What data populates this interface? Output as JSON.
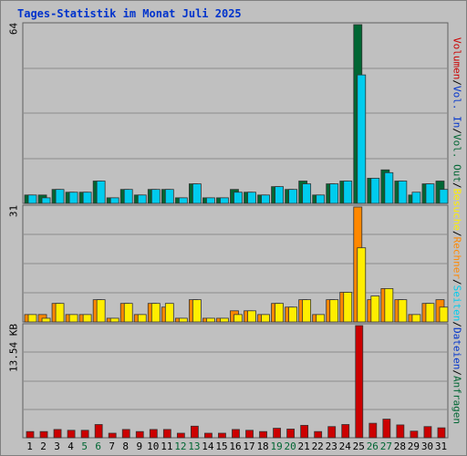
{
  "title": "Tages-Statistik im Monat Juli 2025",
  "panels": {
    "top_max_label": "64",
    "mid_max_label": "31",
    "bottom_max_label": "13.54 KB"
  },
  "legend": {
    "items": [
      {
        "label": "Volumen",
        "color": "#cc0000"
      },
      {
        "label": "Vol. In",
        "color": "#0033cc"
      },
      {
        "label": "Vol. Out",
        "color": "#006633"
      },
      {
        "label": "Besuche",
        "color": "#ffee00"
      },
      {
        "label": "Rechner",
        "color": "#ff8800"
      },
      {
        "label": "Seiten",
        "color": "#00ccee"
      },
      {
        "label": "Dateien",
        "color": "#0033cc"
      },
      {
        "label": "Anfragen",
        "color": "#006633"
      }
    ],
    "separator": "/"
  },
  "chart_data": {
    "type": "bar",
    "categories": [
      "1",
      "2",
      "3",
      "4",
      "5",
      "6",
      "7",
      "8",
      "9",
      "10",
      "11",
      "12",
      "13",
      "14",
      "15",
      "16",
      "17",
      "18",
      "19",
      "20",
      "21",
      "22",
      "23",
      "24",
      "25",
      "26",
      "27",
      "28",
      "29",
      "30",
      "31"
    ],
    "weekend_days": [
      "5",
      "6",
      "12",
      "13",
      "19",
      "20",
      "26",
      "27"
    ],
    "weekend_color": "#006633",
    "panels": [
      {
        "name": "Anfragen / Seiten",
        "ylim": [
          0,
          64
        ],
        "series": [
          {
            "name": "Anfragen",
            "color": "#006633",
            "values": [
              3,
              3,
              5,
              4,
              4,
              8,
              2,
              5,
              3,
              5,
              5,
              2,
              7,
              2,
              2,
              5,
              4,
              3,
              6,
              5,
              8,
              3,
              7,
              8,
              64,
              9,
              12,
              8,
              3,
              7,
              8
            ]
          },
          {
            "name": "Seiten",
            "color": "#00ccee",
            "values": [
              3,
              2,
              5,
              4,
              4,
              8,
              2,
              5,
              3,
              5,
              5,
              2,
              7,
              2,
              2,
              4,
              4,
              3,
              6,
              5,
              7,
              3,
              7,
              8,
              46,
              9,
              11,
              8,
              4,
              7,
              5
            ]
          }
        ]
      },
      {
        "name": "Rechner / Besuche",
        "ylim": [
          0,
          31
        ],
        "series": [
          {
            "name": "Rechner",
            "color": "#ff8800",
            "values": [
              2,
              2,
              5,
              2,
              2,
              6,
              1,
              5,
              2,
              5,
              4,
              1,
              6,
              1,
              1,
              3,
              3,
              2,
              5,
              4,
              6,
              2,
              6,
              8,
              31,
              6,
              9,
              6,
              2,
              5,
              6
            ]
          },
          {
            "name": "Besuche",
            "color": "#ffee00",
            "values": [
              2,
              1,
              5,
              2,
              2,
              6,
              1,
              5,
              2,
              5,
              5,
              1,
              6,
              1,
              1,
              2,
              3,
              2,
              5,
              4,
              6,
              2,
              6,
              8,
              20,
              7,
              9,
              6,
              2,
              5,
              4
            ]
          }
        ]
      },
      {
        "name": "Volumen",
        "ylim": [
          0,
          13.54
        ],
        "unit": "KB",
        "series": [
          {
            "name": "Volumen",
            "color": "#cc0000",
            "values": [
              0.75,
              0.75,
              1.0,
              0.9,
              0.9,
              1.6,
              0.55,
              1.0,
              0.75,
              1.0,
              1.0,
              0.55,
              1.4,
              0.55,
              0.55,
              1.0,
              0.9,
              0.75,
              1.15,
              1.05,
              1.5,
              0.75,
              1.35,
              1.6,
              13.54,
              1.75,
              2.25,
              1.55,
              0.8,
              1.35,
              1.2
            ]
          }
        ]
      }
    ]
  }
}
